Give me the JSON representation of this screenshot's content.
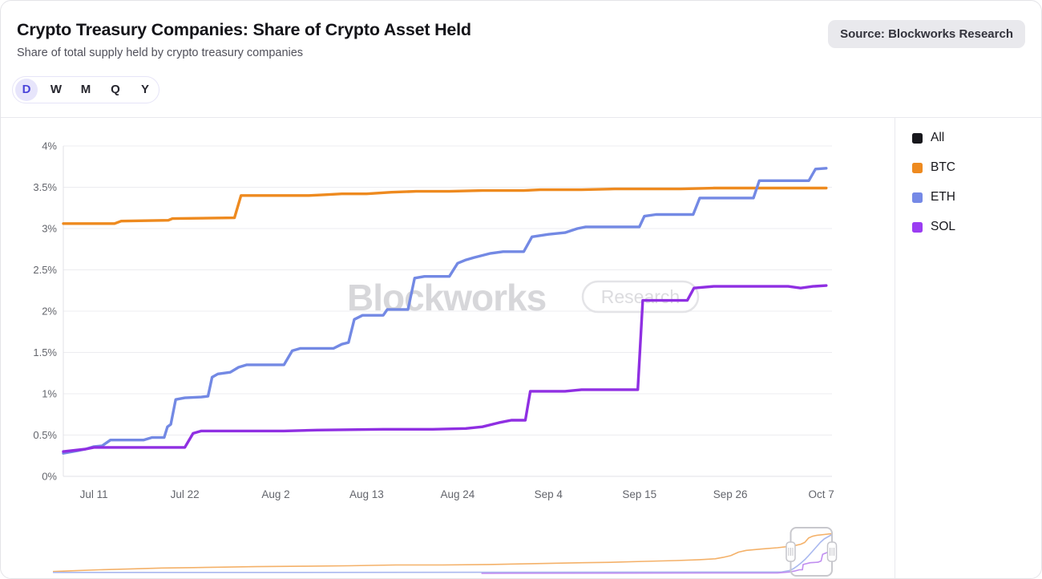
{
  "header": {
    "title": "Crypto Treasury Companies: Share of Crypto Asset Held",
    "subtitle": "Share of total supply held by crypto treasury companies",
    "source_badge": "Source: Blockworks Research"
  },
  "range_selector": {
    "options": [
      "D",
      "W",
      "M",
      "Q",
      "Y"
    ],
    "selected": "D",
    "selected_text_color": "#4a44da",
    "selected_bg_color": "#e7e5fb"
  },
  "legend": {
    "position": "right",
    "items": [
      {
        "label": "All",
        "color": "#17171c"
      },
      {
        "label": "BTC",
        "color": "#ee8a1f"
      },
      {
        "label": "ETH",
        "color": "#7589e6"
      },
      {
        "label": "SOL",
        "color": "#9b3df2"
      }
    ]
  },
  "watermark": {
    "brand": "Blockworks",
    "tag": "Research"
  },
  "chart_data": {
    "type": "line",
    "title": "Crypto Treasury Companies: Share of Crypto Asset Held",
    "xlabel": "",
    "ylabel": "",
    "unit": "%",
    "grid": true,
    "legend_position": "right",
    "ylim": [
      0,
      4
    ],
    "x_domain_days": [
      -0.7,
      92.3
    ],
    "x_ticks": [
      {
        "d": 3,
        "label": "Jul 11"
      },
      {
        "d": 14,
        "label": "Jul 22"
      },
      {
        "d": 25,
        "label": "Aug 2"
      },
      {
        "d": 36,
        "label": "Aug 13"
      },
      {
        "d": 47,
        "label": "Aug 24"
      },
      {
        "d": 58,
        "label": "Sep 4"
      },
      {
        "d": 69,
        "label": "Sep 15"
      },
      {
        "d": 80,
        "label": "Sep 26"
      },
      {
        "d": 91,
        "label": "Oct 7"
      }
    ],
    "y_ticks": [
      {
        "v": 0,
        "label": "0%"
      },
      {
        "v": 0.5,
        "label": "0.5%"
      },
      {
        "v": 1,
        "label": "1%"
      },
      {
        "v": 1.5,
        "label": "1.5%"
      },
      {
        "v": 2,
        "label": "2%"
      },
      {
        "v": 2.5,
        "label": "2.5%"
      },
      {
        "v": 3,
        "label": "3%"
      },
      {
        "v": 3.5,
        "label": "3.5%"
      },
      {
        "v": 4,
        "label": "4%"
      }
    ],
    "series": [
      {
        "name": "All",
        "color": "#17171c",
        "points": []
      },
      {
        "name": "BTC",
        "color": "#ee8a1f",
        "points": [
          [
            -0.7,
            3.06
          ],
          [
            5.5,
            3.06
          ],
          [
            6.3,
            3.09
          ],
          [
            12,
            3.1
          ],
          [
            12.5,
            3.12
          ],
          [
            20,
            3.13
          ],
          [
            20.8,
            3.4
          ],
          [
            29,
            3.4
          ],
          [
            31,
            3.41
          ],
          [
            33,
            3.42
          ],
          [
            36,
            3.42
          ],
          [
            39,
            3.44
          ],
          [
            42,
            3.45
          ],
          [
            46,
            3.45
          ],
          [
            50,
            3.46
          ],
          [
            55,
            3.46
          ],
          [
            57,
            3.47
          ],
          [
            62,
            3.47
          ],
          [
            66,
            3.48
          ],
          [
            74,
            3.48
          ],
          [
            78,
            3.49
          ],
          [
            91.6,
            3.49
          ]
        ]
      },
      {
        "name": "ETH",
        "color": "#7389e4",
        "points": [
          [
            -0.7,
            0.28
          ],
          [
            1,
            0.31
          ],
          [
            2,
            0.33
          ],
          [
            3,
            0.36
          ],
          [
            4,
            0.37
          ],
          [
            5,
            0.44
          ],
          [
            9,
            0.44
          ],
          [
            10,
            0.47
          ],
          [
            11.5,
            0.47
          ],
          [
            11.9,
            0.6
          ],
          [
            12.3,
            0.63
          ],
          [
            12.9,
            0.93
          ],
          [
            14,
            0.95
          ],
          [
            16,
            0.96
          ],
          [
            16.8,
            0.97
          ],
          [
            17.3,
            1.2
          ],
          [
            18,
            1.24
          ],
          [
            19.5,
            1.26
          ],
          [
            20.5,
            1.32
          ],
          [
            21.5,
            1.35
          ],
          [
            26,
            1.35
          ],
          [
            27,
            1.52
          ],
          [
            28,
            1.55
          ],
          [
            32,
            1.55
          ],
          [
            33,
            1.6
          ],
          [
            33.8,
            1.62
          ],
          [
            34.5,
            1.9
          ],
          [
            35.5,
            1.95
          ],
          [
            38,
            1.95
          ],
          [
            38.5,
            2.02
          ],
          [
            41,
            2.02
          ],
          [
            41.8,
            2.4
          ],
          [
            43,
            2.42
          ],
          [
            46,
            2.42
          ],
          [
            47,
            2.58
          ],
          [
            48,
            2.62
          ],
          [
            49,
            2.65
          ],
          [
            51,
            2.7
          ],
          [
            52.5,
            2.72
          ],
          [
            55,
            2.72
          ],
          [
            56,
            2.9
          ],
          [
            58,
            2.93
          ],
          [
            60,
            2.95
          ],
          [
            61.5,
            3.0
          ],
          [
            62.5,
            3.02
          ],
          [
            69,
            3.02
          ],
          [
            69.6,
            3.15
          ],
          [
            71,
            3.17
          ],
          [
            75.5,
            3.17
          ],
          [
            76.3,
            3.37
          ],
          [
            82.8,
            3.37
          ],
          [
            83.5,
            3.58
          ],
          [
            89.5,
            3.58
          ],
          [
            90.3,
            3.72
          ],
          [
            91.6,
            3.73
          ]
        ]
      },
      {
        "name": "SOL",
        "color": "#8f2fe2",
        "points": [
          [
            -0.7,
            0.3
          ],
          [
            2,
            0.33
          ],
          [
            3,
            0.35
          ],
          [
            14,
            0.35
          ],
          [
            15,
            0.52
          ],
          [
            16,
            0.55
          ],
          [
            26,
            0.55
          ],
          [
            30,
            0.56
          ],
          [
            38,
            0.57
          ],
          [
            44,
            0.57
          ],
          [
            48,
            0.58
          ],
          [
            50,
            0.6
          ],
          [
            52,
            0.65
          ],
          [
            53.5,
            0.68
          ],
          [
            55.2,
            0.68
          ],
          [
            55.8,
            1.03
          ],
          [
            60,
            1.03
          ],
          [
            62,
            1.05
          ],
          [
            68.8,
            1.05
          ],
          [
            69.4,
            2.13
          ],
          [
            74.8,
            2.13
          ],
          [
            75.6,
            2.28
          ],
          [
            78,
            2.3
          ],
          [
            87,
            2.3
          ],
          [
            88.5,
            2.28
          ],
          [
            90,
            2.3
          ],
          [
            91.6,
            2.31
          ]
        ]
      }
    ],
    "navigator": {
      "selection": {
        "start": 0.947,
        "end": 1.0
      },
      "series": [
        {
          "name": "BTC",
          "color": "#f4b169",
          "points": [
            [
              0,
              0.06
            ],
            [
              0.03,
              0.08
            ],
            [
              0.06,
              0.1
            ],
            [
              0.1,
              0.12
            ],
            [
              0.14,
              0.14
            ],
            [
              0.18,
              0.15
            ],
            [
              0.22,
              0.16
            ],
            [
              0.26,
              0.17
            ],
            [
              0.32,
              0.18
            ],
            [
              0.38,
              0.19
            ],
            [
              0.44,
              0.21
            ],
            [
              0.5,
              0.21
            ],
            [
              0.56,
              0.22
            ],
            [
              0.62,
              0.24
            ],
            [
              0.68,
              0.26
            ],
            [
              0.72,
              0.27
            ],
            [
              0.76,
              0.29
            ],
            [
              0.8,
              0.31
            ],
            [
              0.83,
              0.33
            ],
            [
              0.85,
              0.35
            ],
            [
              0.86,
              0.38
            ],
            [
              0.87,
              0.42
            ],
            [
              0.88,
              0.5
            ],
            [
              0.89,
              0.54
            ],
            [
              0.91,
              0.57
            ],
            [
              0.93,
              0.6
            ],
            [
              0.95,
              0.64
            ],
            [
              0.96,
              0.68
            ],
            [
              0.965,
              0.72
            ],
            [
              0.97,
              0.82
            ],
            [
              0.975,
              0.86
            ],
            [
              0.98,
              0.88
            ],
            [
              0.99,
              0.9
            ],
            [
              1,
              0.92
            ]
          ]
        },
        {
          "name": "ETH",
          "color": "#a9b8ef",
          "points": [
            [
              0,
              0.04
            ],
            [
              0.3,
              0.04
            ],
            [
              0.6,
              0.045
            ],
            [
              0.9,
              0.05
            ],
            [
              0.935,
              0.05
            ],
            [
              0.945,
              0.08
            ],
            [
              0.95,
              0.12
            ],
            [
              0.955,
              0.18
            ],
            [
              0.96,
              0.25
            ],
            [
              0.965,
              0.33
            ],
            [
              0.97,
              0.42
            ],
            [
              0.975,
              0.52
            ],
            [
              0.98,
              0.62
            ],
            [
              0.985,
              0.72
            ],
            [
              0.99,
              0.8
            ],
            [
              1,
              0.9
            ]
          ]
        },
        {
          "name": "SOL",
          "color": "#c08df0",
          "points": [
            [
              0.55,
              0.02
            ],
            [
              0.93,
              0.03
            ],
            [
              0.945,
              0.05
            ],
            [
              0.952,
              0.07
            ],
            [
              0.958,
              0.1
            ],
            [
              0.962,
              0.1
            ],
            [
              0.963,
              0.22
            ],
            [
              0.972,
              0.26
            ],
            [
              0.982,
              0.27
            ],
            [
              0.986,
              0.3
            ],
            [
              0.988,
              0.45
            ],
            [
              0.995,
              0.5
            ],
            [
              1,
              0.52
            ]
          ]
        }
      ]
    }
  },
  "chart_style": {
    "grid_color": "#ececf0",
    "axis_color": "#e2e2e7",
    "tick_text_color": "#63656c",
    "watermark_color": "#d7d7da",
    "selection_border_color": "#c8c8cd"
  }
}
